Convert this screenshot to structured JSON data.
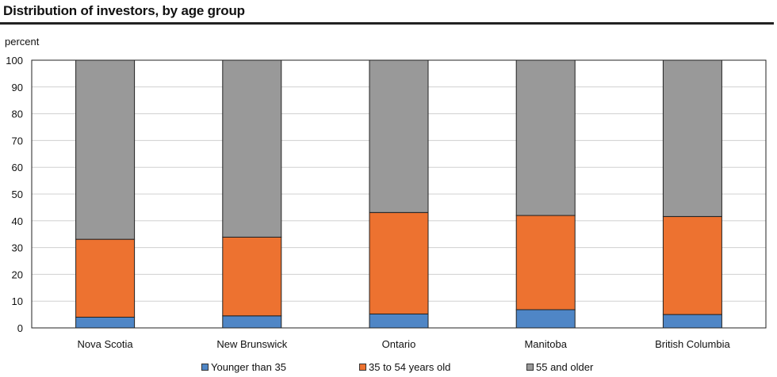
{
  "chart_data": {
    "type": "bar",
    "stacked": true,
    "title": "Distribution of investors, by age group",
    "ylabel": "percent",
    "xlabel": "",
    "ylim": [
      0,
      100
    ],
    "yticks": [
      0,
      10,
      20,
      30,
      40,
      50,
      60,
      70,
      80,
      90,
      100
    ],
    "grid": true,
    "legend_position": "bottom",
    "categories": [
      "Nova Scotia",
      "New Brunswick",
      "Ontario",
      "Manitoba",
      "British Columbia"
    ],
    "series": [
      {
        "name": "Younger than 35",
        "color": "#4f86c6",
        "values": [
          4.0,
          4.5,
          5.2,
          6.8,
          5.0
        ]
      },
      {
        "name": "35 to 54 years old",
        "color": "#ed7230",
        "values": [
          29.1,
          29.4,
          37.9,
          35.2,
          36.6
        ]
      },
      {
        "name": "55 and older",
        "color": "#999999",
        "values": [
          66.9,
          66.1,
          56.9,
          58.0,
          58.4
        ]
      }
    ]
  }
}
